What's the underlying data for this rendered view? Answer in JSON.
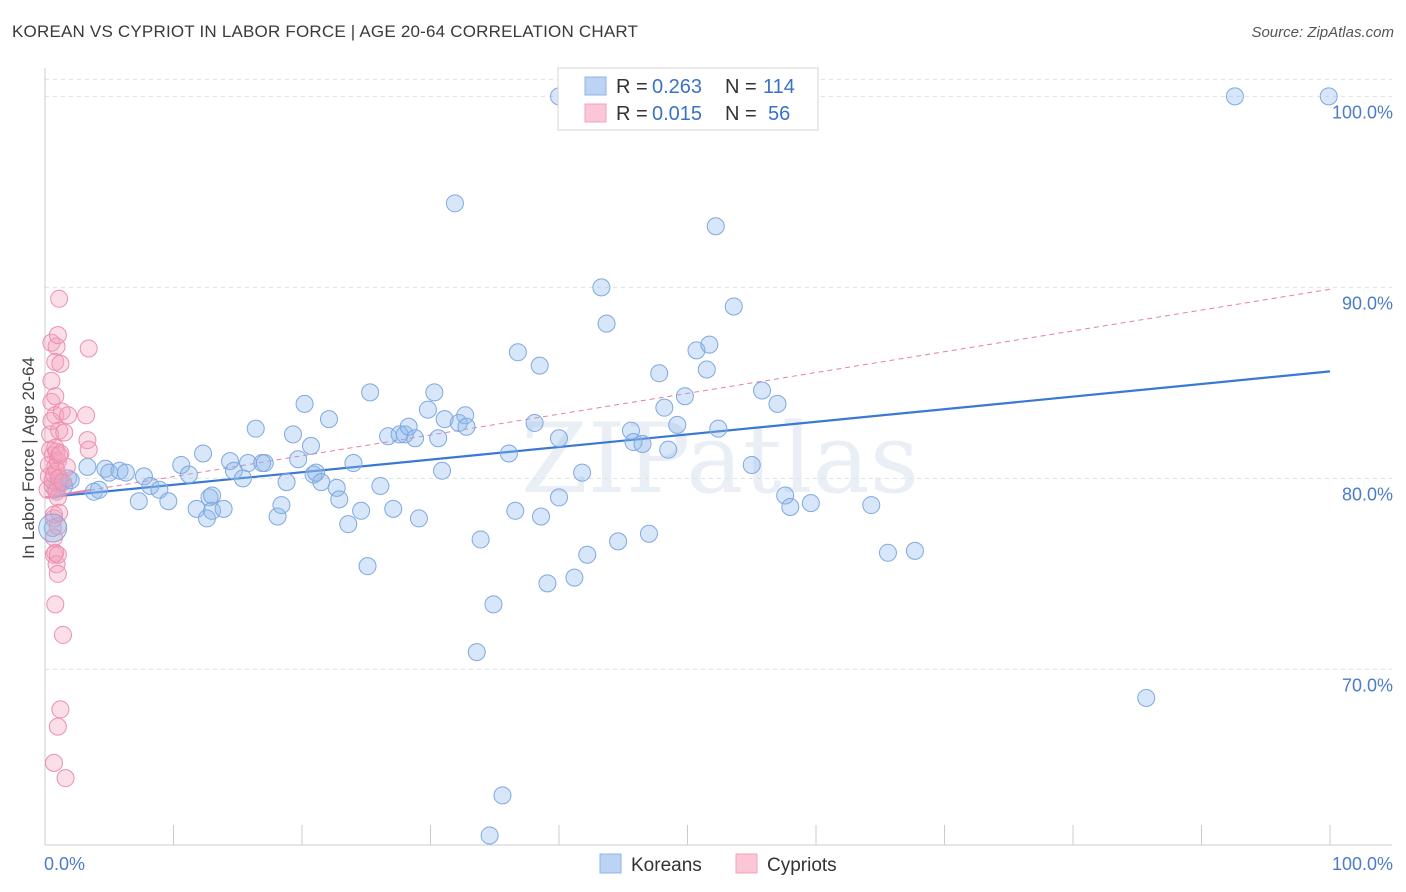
{
  "title": "KOREAN VS CYPRIOT IN LABOR FORCE | AGE 20-64 CORRELATION CHART",
  "source": "Source: ZipAtlas.com",
  "watermark": "ZIPatlas",
  "chart_data": {
    "type": "scatter",
    "ylabel": "In Labor Force | Age 20-64",
    "xlim": [
      0,
      100
    ],
    "ylim": [
      60.8,
      101.8
    ],
    "x_tick_labels": [
      "0.0%",
      "100.0%"
    ],
    "y_ticks": [
      70,
      80,
      90,
      100
    ],
    "y_tick_labels": [
      "70.0%",
      "80.0%",
      "90.0%",
      "100.0%"
    ],
    "grid": true,
    "legend_position": "top-center",
    "legend": {
      "rows": [
        {
          "r_label": "R = ",
          "r_value": "0.263",
          "n_label": "N = ",
          "n_value": "114"
        },
        {
          "r_label": "R = ",
          "r_value": "0.015",
          "n_label": "N = ",
          "n_value": " 56"
        }
      ]
    },
    "series": [
      {
        "name": "Koreans",
        "color": "#8db6ea",
        "line_color": "#3a78d4",
        "trend": {
          "x": [
            0,
            100
          ],
          "y": [
            79.0,
            85.6
          ]
        },
        "points": [
          [
            0.6,
            77.4
          ],
          [
            0.8,
            79.4
          ],
          [
            1.0,
            79.7
          ],
          [
            1.2,
            79.8
          ],
          [
            1.5,
            79.6
          ],
          [
            1.8,
            80.0
          ],
          [
            2.0,
            79.9
          ],
          [
            3.3,
            80.6
          ],
          [
            3.8,
            79.3
          ],
          [
            4.2,
            79.4
          ],
          [
            4.7,
            80.5
          ],
          [
            5.0,
            80.3
          ],
          [
            5.8,
            80.4
          ],
          [
            6.3,
            80.3
          ],
          [
            7.3,
            78.8
          ],
          [
            7.7,
            80.1
          ],
          [
            8.2,
            79.6
          ],
          [
            8.9,
            79.4
          ],
          [
            9.6,
            78.8
          ],
          [
            10.6,
            80.7
          ],
          [
            11.2,
            80.2
          ],
          [
            11.8,
            78.4
          ],
          [
            12.3,
            81.3
          ],
          [
            12.6,
            77.9
          ],
          [
            12.8,
            79.0
          ],
          [
            13.0,
            79.1
          ],
          [
            13.0,
            78.3
          ],
          [
            13.9,
            78.4
          ],
          [
            14.4,
            80.9
          ],
          [
            14.7,
            80.4
          ],
          [
            15.4,
            80.0
          ],
          [
            15.8,
            80.8
          ],
          [
            16.4,
            82.6
          ],
          [
            16.9,
            80.8
          ],
          [
            17.1,
            80.8
          ],
          [
            18.1,
            78.0
          ],
          [
            18.4,
            78.6
          ],
          [
            18.8,
            79.8
          ],
          [
            19.3,
            82.3
          ],
          [
            19.7,
            81.0
          ],
          [
            20.2,
            83.9
          ],
          [
            20.7,
            81.7
          ],
          [
            20.9,
            80.2
          ],
          [
            21.1,
            80.3
          ],
          [
            21.5,
            79.8
          ],
          [
            22.1,
            83.1
          ],
          [
            22.7,
            79.5
          ],
          [
            22.9,
            78.9
          ],
          [
            23.6,
            77.6
          ],
          [
            24.0,
            80.8
          ],
          [
            24.6,
            78.3
          ],
          [
            25.1,
            75.4
          ],
          [
            25.3,
            84.5
          ],
          [
            26.1,
            79.6
          ],
          [
            26.7,
            82.2
          ],
          [
            27.1,
            78.4
          ],
          [
            27.6,
            82.3
          ],
          [
            28.0,
            82.3
          ],
          [
            28.3,
            82.7
          ],
          [
            28.8,
            82.1
          ],
          [
            29.1,
            77.9
          ],
          [
            29.8,
            83.6
          ],
          [
            30.3,
            84.5
          ],
          [
            30.6,
            82.1
          ],
          [
            30.9,
            80.4
          ],
          [
            31.1,
            83.1
          ],
          [
            31.9,
            94.4
          ],
          [
            32.2,
            82.9
          ],
          [
            32.7,
            83.3
          ],
          [
            32.8,
            82.7
          ],
          [
            33.6,
            70.9
          ],
          [
            33.9,
            76.8
          ],
          [
            34.6,
            61.3
          ],
          [
            34.9,
            73.4
          ],
          [
            35.6,
            63.4
          ],
          [
            36.1,
            81.3
          ],
          [
            36.6,
            78.3
          ],
          [
            36.8,
            86.6
          ],
          [
            38.1,
            82.9
          ],
          [
            38.5,
            85.9
          ],
          [
            38.6,
            78.0
          ],
          [
            39.1,
            74.5
          ],
          [
            40.0,
            82.1
          ],
          [
            40.0,
            79.0
          ],
          [
            41.2,
            74.8
          ],
          [
            41.8,
            80.3
          ],
          [
            42.2,
            76.0
          ],
          [
            43.3,
            90.0
          ],
          [
            43.7,
            88.1
          ],
          [
            44.6,
            76.7
          ],
          [
            45.6,
            82.5
          ],
          [
            45.8,
            81.9
          ],
          [
            46.5,
            81.8
          ],
          [
            47.0,
            77.1
          ],
          [
            47.8,
            85.5
          ],
          [
            48.2,
            83.7
          ],
          [
            48.5,
            81.5
          ],
          [
            49.2,
            82.8
          ],
          [
            49.8,
            84.3
          ],
          [
            50.7,
            86.7
          ],
          [
            51.5,
            85.7
          ],
          [
            51.7,
            87.0
          ],
          [
            52.2,
            93.2
          ],
          [
            52.4,
            82.6
          ],
          [
            53.6,
            89.0
          ],
          [
            55.0,
            80.7
          ],
          [
            55.8,
            84.6
          ],
          [
            57.0,
            83.9
          ],
          [
            57.6,
            79.1
          ],
          [
            58.0,
            78.5
          ],
          [
            59.6,
            78.7
          ],
          [
            64.3,
            78.6
          ],
          [
            65.6,
            76.1
          ],
          [
            67.7,
            76.2
          ],
          [
            85.7,
            68.5
          ],
          [
            92.6,
            100.0
          ],
          [
            99.9,
            100.0
          ],
          [
            40.0,
            100.0
          ]
        ]
      },
      {
        "name": "Cypriots",
        "color": "#f3a3bd",
        "line_color": "#e87ea0",
        "trend": {
          "x": [
            0,
            100
          ],
          "y": [
            79.0,
            89.9
          ]
        },
        "points": [
          [
            0.2,
            79.4
          ],
          [
            0.3,
            80.1
          ],
          [
            0.3,
            80.7
          ],
          [
            0.4,
            81.5
          ],
          [
            0.4,
            82.3
          ],
          [
            0.5,
            83.0
          ],
          [
            0.5,
            84.0
          ],
          [
            0.5,
            85.1
          ],
          [
            0.5,
            87.1
          ],
          [
            0.6,
            81.2
          ],
          [
            0.6,
            79.6
          ],
          [
            0.6,
            79.9
          ],
          [
            0.7,
            80.2
          ],
          [
            0.7,
            76.0
          ],
          [
            0.7,
            76.9
          ],
          [
            0.7,
            78.1
          ],
          [
            0.7,
            65.1
          ],
          [
            0.7,
            77.9
          ],
          [
            0.8,
            80.6
          ],
          [
            0.8,
            81.6
          ],
          [
            0.8,
            83.3
          ],
          [
            0.8,
            84.3
          ],
          [
            0.8,
            76.1
          ],
          [
            0.8,
            73.4
          ],
          [
            0.8,
            86.1
          ],
          [
            0.9,
            80.4
          ],
          [
            0.9,
            79.3
          ],
          [
            0.9,
            75.5
          ],
          [
            0.9,
            81.4
          ],
          [
            0.9,
            86.9
          ],
          [
            1.0,
            79.0
          ],
          [
            1.0,
            80.9
          ],
          [
            1.0,
            77.5
          ],
          [
            1.0,
            76.0
          ],
          [
            1.0,
            75.0
          ],
          [
            1.0,
            67.0
          ],
          [
            1.0,
            87.5
          ],
          [
            1.1,
            80.0
          ],
          [
            1.1,
            81.2
          ],
          [
            1.1,
            82.5
          ],
          [
            1.1,
            78.2
          ],
          [
            1.1,
            89.4
          ],
          [
            1.2,
            67.9
          ],
          [
            1.2,
            86.0
          ],
          [
            1.2,
            81.3
          ],
          [
            1.3,
            83.5
          ],
          [
            1.4,
            79.8
          ],
          [
            1.4,
            71.8
          ],
          [
            1.5,
            82.4
          ],
          [
            1.6,
            64.3
          ],
          [
            1.7,
            80.6
          ],
          [
            1.8,
            83.3
          ],
          [
            3.2,
            83.3
          ],
          [
            3.3,
            82.0
          ],
          [
            3.4,
            81.5
          ],
          [
            3.4,
            86.8
          ]
        ]
      }
    ]
  }
}
